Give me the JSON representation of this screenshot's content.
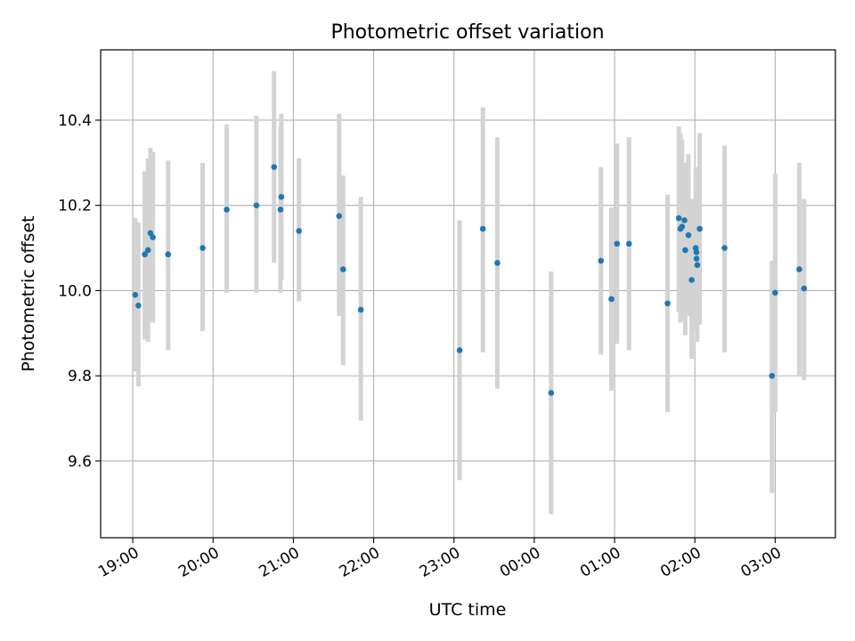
{
  "chart_data": {
    "type": "scatter",
    "title": "Photometric offset variation",
    "xlabel": "UTC time",
    "ylabel": "Photometric offset",
    "grid": true,
    "xlim_hours": [
      18.6,
      27.75
    ],
    "ylim": [
      9.42,
      10.565
    ],
    "yticks": [
      {
        "value": 9.6,
        "label": "9.6"
      },
      {
        "value": 9.8,
        "label": "9.8"
      },
      {
        "value": 10.0,
        "label": "10.0"
      },
      {
        "value": 10.2,
        "label": "10.2"
      },
      {
        "value": 10.4,
        "label": "10.4"
      }
    ],
    "xticks": [
      {
        "value": 19,
        "label": "19:00"
      },
      {
        "value": 20,
        "label": "20:00"
      },
      {
        "value": 21,
        "label": "21:00"
      },
      {
        "value": 22,
        "label": "22:00"
      },
      {
        "value": 23,
        "label": "23:00"
      },
      {
        "value": 24,
        "label": "00:00"
      },
      {
        "value": 25,
        "label": "01:00"
      },
      {
        "value": 26,
        "label": "02:00"
      },
      {
        "value": 27,
        "label": "03:00"
      }
    ],
    "colors": {
      "point": "#1f77b4",
      "errorbar": "#d3d3d3",
      "grid": "#b0b0b0"
    },
    "points": [
      {
        "t": 19.03,
        "y": 9.99,
        "lo": 9.81,
        "hi": 10.17
      },
      {
        "t": 19.07,
        "y": 9.965,
        "lo": 9.775,
        "hi": 10.16
      },
      {
        "t": 19.15,
        "y": 10.085,
        "lo": 9.885,
        "hi": 10.28
      },
      {
        "t": 19.19,
        "y": 10.095,
        "lo": 9.88,
        "hi": 10.31
      },
      {
        "t": 19.22,
        "y": 10.135,
        "lo": 9.93,
        "hi": 10.335
      },
      {
        "t": 19.25,
        "y": 10.125,
        "lo": 9.925,
        "hi": 10.325
      },
      {
        "t": 19.44,
        "y": 10.085,
        "lo": 9.86,
        "hi": 10.305
      },
      {
        "t": 19.87,
        "y": 10.1,
        "lo": 9.905,
        "hi": 10.3
      },
      {
        "t": 20.17,
        "y": 10.19,
        "lo": 9.995,
        "hi": 10.39
      },
      {
        "t": 20.54,
        "y": 10.2,
        "lo": 9.995,
        "hi": 10.41
      },
      {
        "t": 20.76,
        "y": 10.29,
        "lo": 10.065,
        "hi": 10.515
      },
      {
        "t": 20.84,
        "y": 10.19,
        "lo": 9.995,
        "hi": 10.385
      },
      {
        "t": 20.85,
        "y": 10.22,
        "lo": 10.025,
        "hi": 10.415
      },
      {
        "t": 21.07,
        "y": 10.14,
        "lo": 9.975,
        "hi": 10.31
      },
      {
        "t": 21.57,
        "y": 10.175,
        "lo": 9.94,
        "hi": 10.415
      },
      {
        "t": 21.62,
        "y": 10.05,
        "lo": 9.825,
        "hi": 10.27
      },
      {
        "t": 21.84,
        "y": 9.955,
        "lo": 9.695,
        "hi": 10.22
      },
      {
        "t": 23.07,
        "y": 9.86,
        "lo": 9.555,
        "hi": 10.165
      },
      {
        "t": 23.36,
        "y": 10.145,
        "lo": 9.855,
        "hi": 10.43
      },
      {
        "t": 23.54,
        "y": 10.065,
        "lo": 9.77,
        "hi": 10.36
      },
      {
        "t": 24.21,
        "y": 9.76,
        "lo": 9.475,
        "hi": 10.045
      },
      {
        "t": 24.83,
        "y": 10.07,
        "lo": 9.85,
        "hi": 10.29
      },
      {
        "t": 24.96,
        "y": 9.98,
        "lo": 9.765,
        "hi": 10.195
      },
      {
        "t": 25.03,
        "y": 10.11,
        "lo": 9.875,
        "hi": 10.345
      },
      {
        "t": 25.18,
        "y": 10.11,
        "lo": 9.86,
        "hi": 10.36
      },
      {
        "t": 25.66,
        "y": 9.97,
        "lo": 9.715,
        "hi": 10.225
      },
      {
        "t": 25.8,
        "y": 10.17,
        "lo": 9.95,
        "hi": 10.385
      },
      {
        "t": 25.82,
        "y": 10.145,
        "lo": 9.925,
        "hi": 10.37
      },
      {
        "t": 25.84,
        "y": 10.15,
        "lo": 9.93,
        "hi": 10.355
      },
      {
        "t": 25.87,
        "y": 10.165,
        "lo": 9.965,
        "hi": 10.28
      },
      {
        "t": 25.88,
        "y": 10.095,
        "lo": 9.895,
        "hi": 10.3
      },
      {
        "t": 25.92,
        "y": 10.13,
        "lo": 9.94,
        "hi": 10.32
      },
      {
        "t": 25.96,
        "y": 10.025,
        "lo": 9.84,
        "hi": 10.215
      },
      {
        "t": 26.01,
        "y": 10.1,
        "lo": 9.905,
        "hi": 10.29
      },
      {
        "t": 26.02,
        "y": 10.075,
        "lo": 9.88,
        "hi": 10.27
      },
      {
        "t": 26.02,
        "y": 10.09,
        "lo": 9.9,
        "hi": 10.275
      },
      {
        "t": 26.03,
        "y": 10.06,
        "lo": 9.88,
        "hi": 10.23
      },
      {
        "t": 26.06,
        "y": 10.145,
        "lo": 9.92,
        "hi": 10.37
      },
      {
        "t": 26.37,
        "y": 10.1,
        "lo": 9.855,
        "hi": 10.34
      },
      {
        "t": 26.96,
        "y": 9.8,
        "lo": 9.525,
        "hi": 10.07
      },
      {
        "t": 27.0,
        "y": 9.995,
        "lo": 9.715,
        "hi": 10.275
      },
      {
        "t": 27.3,
        "y": 10.05,
        "lo": 9.8,
        "hi": 10.3
      },
      {
        "t": 27.36,
        "y": 10.005,
        "lo": 9.79,
        "hi": 10.215
      }
    ]
  }
}
